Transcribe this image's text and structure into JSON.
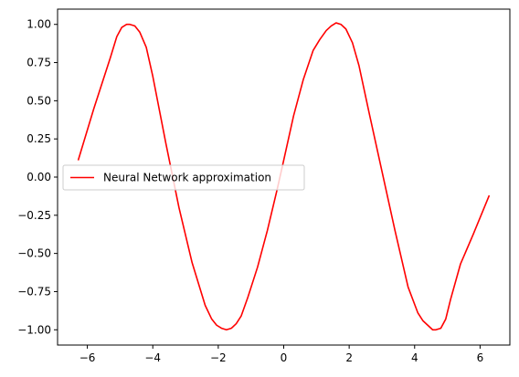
{
  "chart_data": {
    "type": "line",
    "title": "",
    "xlabel": "",
    "ylabel": "",
    "xlim": [
      -6.91,
      6.91
    ],
    "ylim": [
      -1.1,
      1.1
    ],
    "grid": false,
    "legend_position": "center-left",
    "xticks": [
      -6,
      -4,
      -2,
      0,
      2,
      4,
      6
    ],
    "xtick_labels": [
      "−6",
      "−4",
      "−2",
      "0",
      "2",
      "4",
      "6"
    ],
    "yticks": [
      1.0,
      0.75,
      0.5,
      0.25,
      0.0,
      -0.25,
      -0.5,
      -0.75,
      -1.0
    ],
    "ytick_labels": [
      "1.00",
      "0.75",
      "0.50",
      "0.25",
      "0.00",
      "−0.25",
      "−0.50",
      "−0.75",
      "−1.00"
    ],
    "series": [
      {
        "name": "Neural Network approximation",
        "color": "#ff0000",
        "x": [
          -6.28,
          -5.8,
          -5.3,
          -5.1,
          -4.95,
          -4.8,
          -4.7,
          -4.55,
          -4.4,
          -4.2,
          -4.0,
          -3.6,
          -3.2,
          -2.8,
          -2.4,
          -2.2,
          -2.05,
          -1.9,
          -1.75,
          -1.6,
          -1.45,
          -1.3,
          -1.1,
          -0.8,
          -0.5,
          -0.2,
          0.0,
          0.3,
          0.6,
          0.9,
          1.1,
          1.3,
          1.45,
          1.6,
          1.75,
          1.9,
          2.1,
          2.3,
          2.6,
          3.0,
          3.4,
          3.8,
          4.1,
          4.25,
          4.4,
          4.55,
          4.65,
          4.8,
          4.95,
          5.1,
          5.4,
          5.8,
          6.28
        ],
        "y": [
          0.11,
          0.45,
          0.78,
          0.92,
          0.98,
          1.0,
          1.0,
          0.99,
          0.95,
          0.85,
          0.66,
          0.22,
          -0.2,
          -0.56,
          -0.84,
          -0.93,
          -0.97,
          -0.99,
          -1.0,
          -0.99,
          -0.96,
          -0.91,
          -0.79,
          -0.59,
          -0.35,
          -0.08,
          0.11,
          0.4,
          0.64,
          0.83,
          0.9,
          0.96,
          0.99,
          1.01,
          1.0,
          0.97,
          0.88,
          0.73,
          0.43,
          0.04,
          -0.35,
          -0.72,
          -0.89,
          -0.94,
          -0.97,
          -1.0,
          -1.0,
          -0.99,
          -0.93,
          -0.8,
          -0.57,
          -0.37,
          -0.12
        ]
      }
    ]
  }
}
